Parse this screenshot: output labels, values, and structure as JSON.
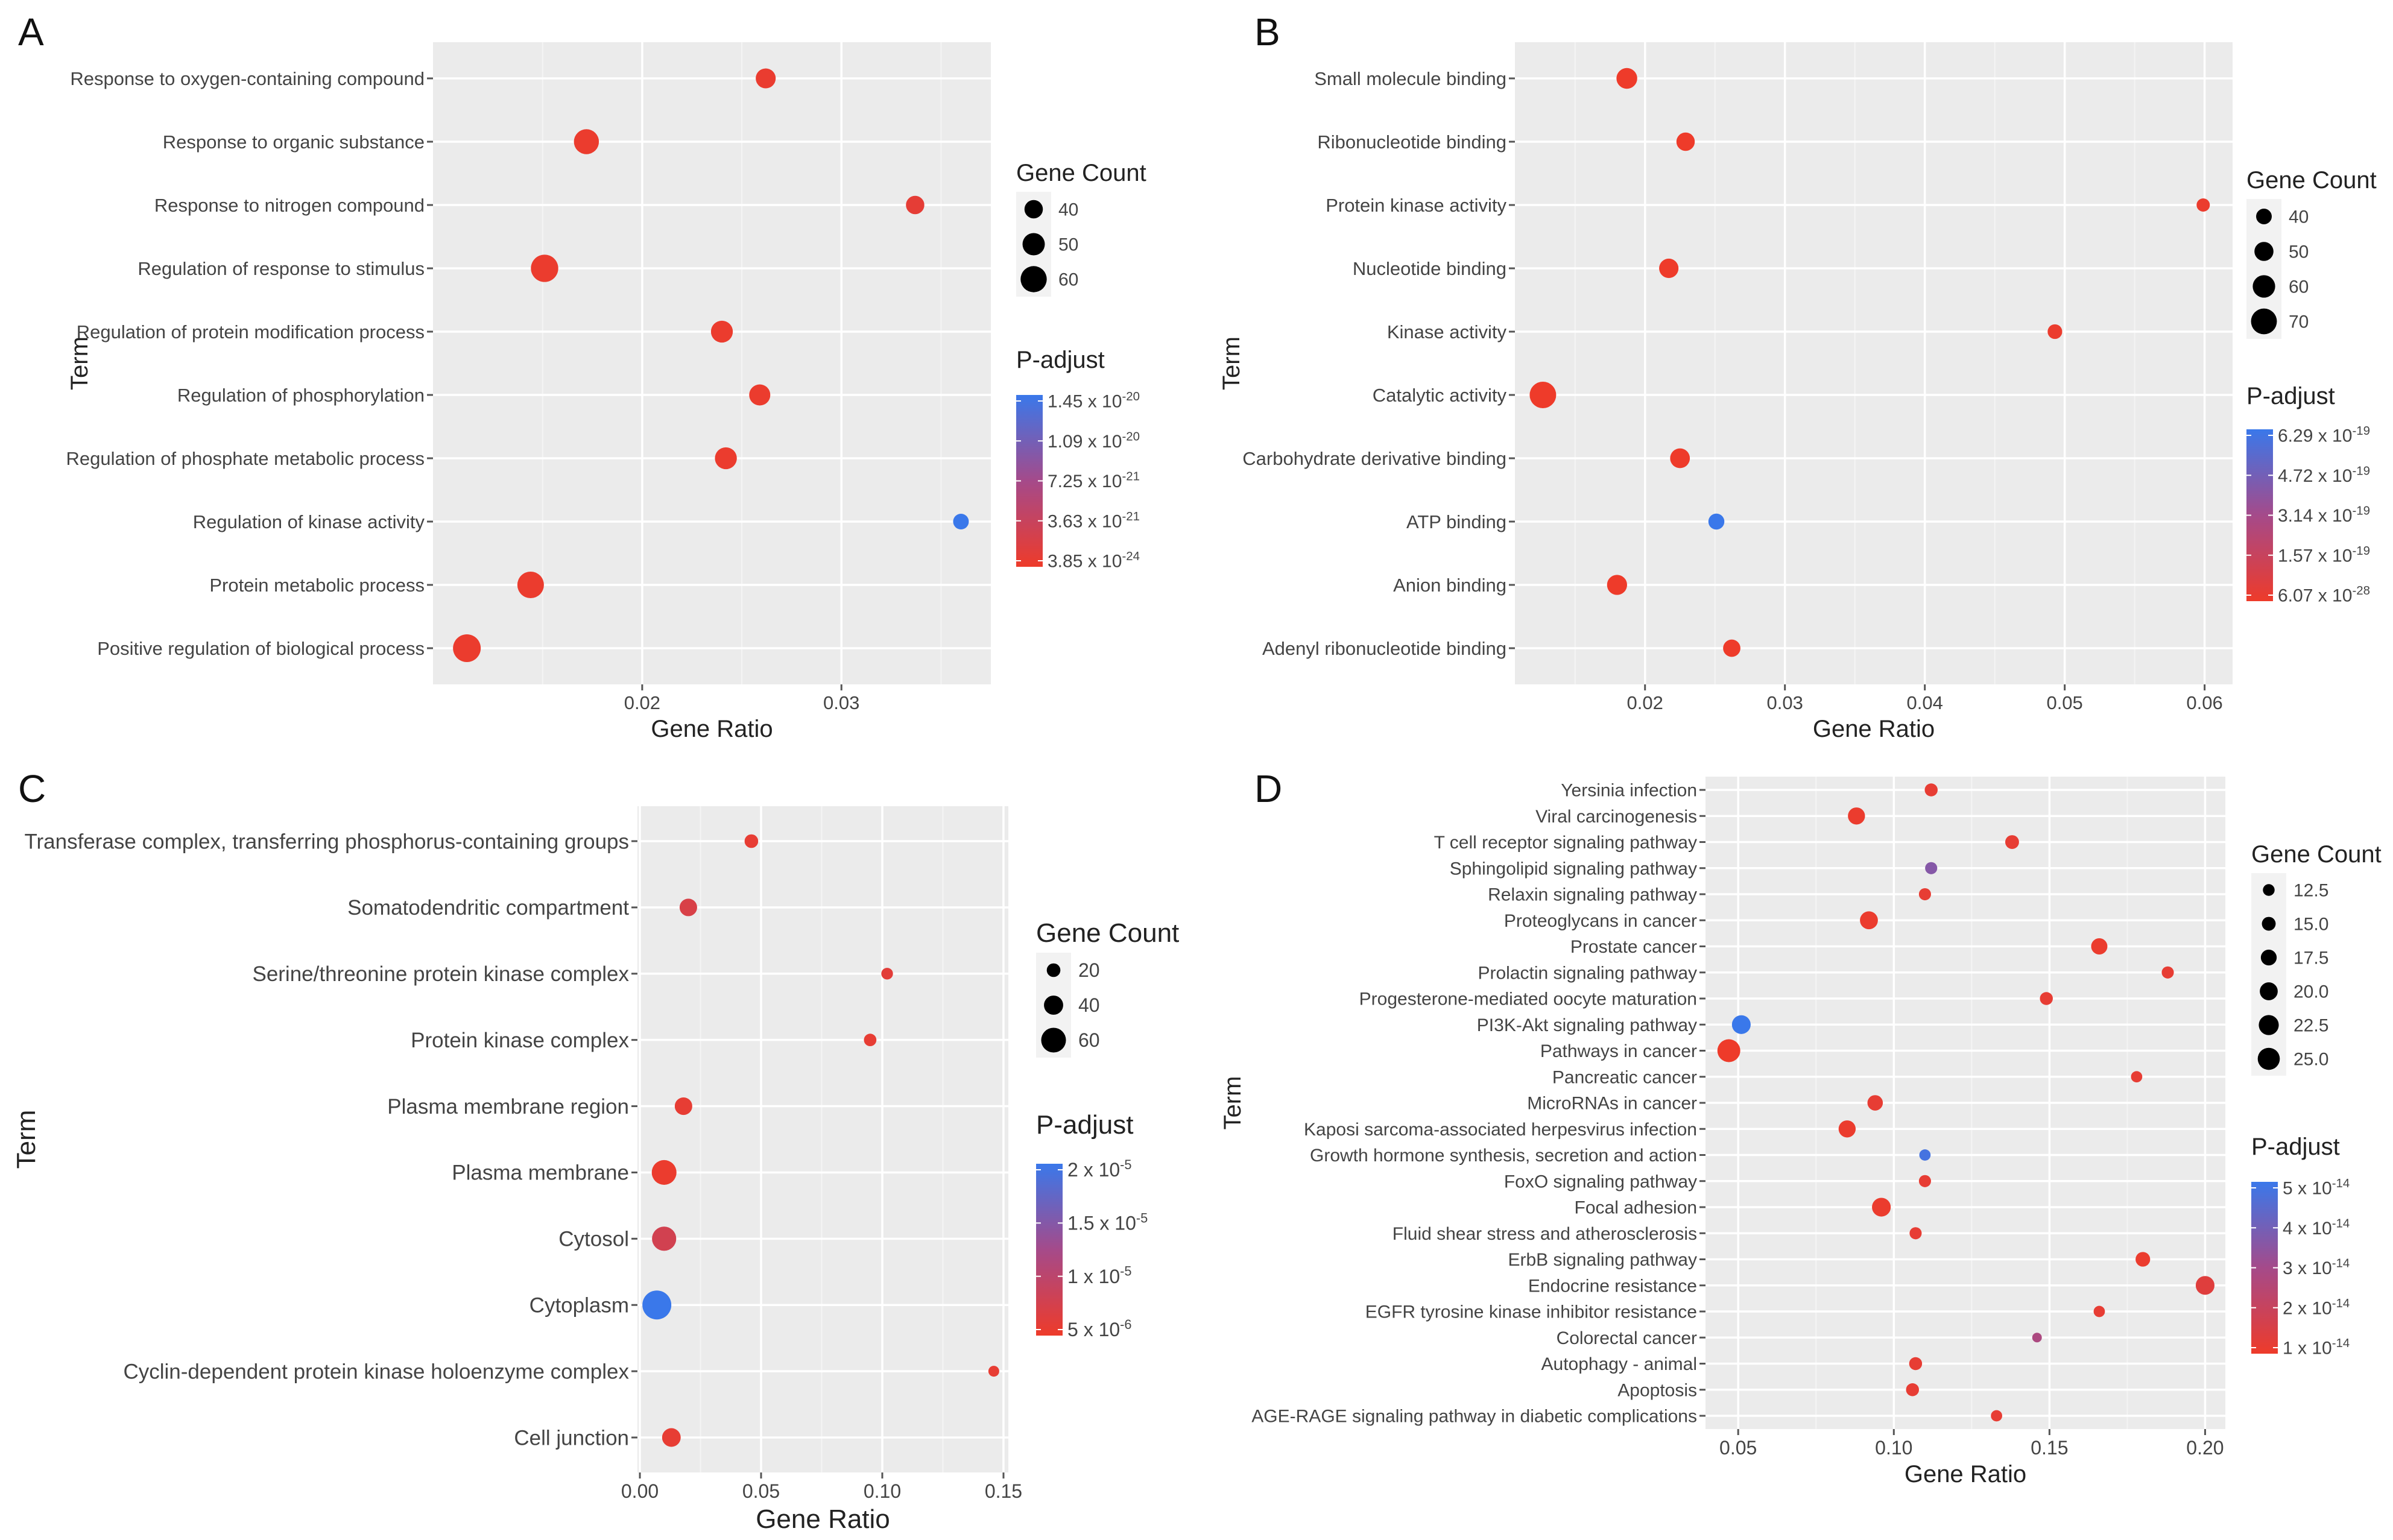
{
  "figure": {
    "description_panels": [
      "A",
      "B",
      "C",
      "D"
    ]
  },
  "chart_data": [
    {
      "panel": "A",
      "type": "scatter",
      "xlabel": "Gene Ratio",
      "ylabel": "Term",
      "xlim": [
        0.0095,
        0.0375
      ],
      "xticks": [
        0.02,
        0.03
      ],
      "xtick_labels": [
        "0.02",
        "0.03"
      ],
      "terms": [
        "Response to oxygen-containing compound",
        "Response to organic substance",
        "Response to nitrogen compound",
        "Regulation of response to stimulus",
        "Regulation of protein modification process",
        "Regulation of phosphorylation",
        "Regulation of phosphate metabolic process",
        "Regulation of kinase activity",
        "Protein metabolic process",
        "Positive regulation of biological process"
      ],
      "points": [
        {
          "term": "Response to oxygen-containing compound",
          "gene_ratio": 0.0262,
          "count": 44,
          "color_t": 0.03
        },
        {
          "term": "Response to organic substance",
          "gene_ratio": 0.0172,
          "count": 57,
          "color_t": 0.02
        },
        {
          "term": "Response to nitrogen compound",
          "gene_ratio": 0.0337,
          "count": 40,
          "color_t": 0.06
        },
        {
          "term": "Regulation of response to stimulus",
          "gene_ratio": 0.0151,
          "count": 63,
          "color_t": 0.02
        },
        {
          "term": "Regulation of protein modification process",
          "gene_ratio": 0.024,
          "count": 49,
          "color_t": 0.02
        },
        {
          "term": "Regulation of phosphorylation",
          "gene_ratio": 0.0259,
          "count": 47,
          "color_t": 0.02
        },
        {
          "term": "Regulation of phosphate metabolic process",
          "gene_ratio": 0.0242,
          "count": 49,
          "color_t": 0.02
        },
        {
          "term": "Regulation of kinase activity",
          "gene_ratio": 0.036,
          "count": 33,
          "color_t": 1.0
        },
        {
          "term": "Protein metabolic process",
          "gene_ratio": 0.0144,
          "count": 61,
          "color_t": 0.02
        },
        {
          "term": "Positive regulation of biological process",
          "gene_ratio": 0.0112,
          "count": 64,
          "color_t": 0.02
        }
      ],
      "size_legend": {
        "title": "Gene Count",
        "values": [
          40,
          50,
          60
        ],
        "labels": [
          "40",
          "50",
          "60"
        ]
      },
      "color_legend": {
        "title": "P-adjust",
        "labels": [
          "1.45 x 10-20",
          "1.09 x 10-20",
          "7.25 x 10-21",
          "3.63 x 10-21",
          "3.85 x 10-24"
        ]
      }
    },
    {
      "panel": "B",
      "type": "scatter",
      "xlabel": "Gene Ratio",
      "ylabel": "Term",
      "xlim": [
        0.0107,
        0.062
      ],
      "xticks": [
        0.02,
        0.03,
        0.04,
        0.05,
        0.06
      ],
      "xtick_labels": [
        "0.02",
        "0.03",
        "0.04",
        "0.05",
        "0.06"
      ],
      "terms": [
        "Small molecule binding",
        "Ribonucleotide binding",
        "Protein kinase activity",
        "Nucleotide binding",
        "Kinase activity",
        "Catalytic activity",
        "Carbohydrate derivative binding",
        "ATP binding",
        "Anion binding",
        "Adenyl ribonucleotide binding"
      ],
      "points": [
        {
          "term": "Small molecule binding",
          "gene_ratio": 0.0187,
          "count": 55,
          "color_t": 0.0
        },
        {
          "term": "Ribonucleotide binding",
          "gene_ratio": 0.0229,
          "count": 48,
          "color_t": 0.0
        },
        {
          "term": "Protein kinase activity",
          "gene_ratio": 0.0599,
          "count": 33,
          "color_t": 0.02
        },
        {
          "term": "Nucleotide binding",
          "gene_ratio": 0.0217,
          "count": 51,
          "color_t": 0.0
        },
        {
          "term": "Kinase activity",
          "gene_ratio": 0.0493,
          "count": 37,
          "color_t": 0.02
        },
        {
          "term": "Catalytic activity",
          "gene_ratio": 0.0127,
          "count": 72,
          "color_t": 0.0
        },
        {
          "term": "Carbohydrate derivative binding",
          "gene_ratio": 0.0225,
          "count": 52,
          "color_t": 0.0
        },
        {
          "term": "ATP binding",
          "gene_ratio": 0.0251,
          "count": 41,
          "color_t": 1.0
        },
        {
          "term": "Anion binding",
          "gene_ratio": 0.018,
          "count": 53,
          "color_t": 0.0
        },
        {
          "term": "Adenyl ribonucleotide binding",
          "gene_ratio": 0.0262,
          "count": 45,
          "color_t": 0.0
        }
      ],
      "size_legend": {
        "title": "Gene Count",
        "values": [
          40,
          50,
          60,
          70
        ],
        "labels": [
          "40",
          "50",
          "60",
          "70"
        ]
      },
      "color_legend": {
        "title": "P-adjust",
        "labels": [
          "6.29 x 10-19",
          "4.72 x 10-19",
          "3.14 x 10-19",
          "1.57 x 10-19",
          "6.07 x 10-28"
        ]
      }
    },
    {
      "panel": "C",
      "type": "scatter",
      "xlabel": "Gene Ratio",
      "ylabel": "Term",
      "xlim": [
        -0.001,
        0.152
      ],
      "xticks": [
        0.0,
        0.05,
        0.1,
        0.15
      ],
      "xtick_labels": [
        "0.00",
        "0.05",
        "0.10",
        "0.15"
      ],
      "terms": [
        "Transferase complex, transferring phosphorus-containing groups",
        "Somatodendritic compartment",
        "Serine/threonine protein kinase complex",
        "Protein kinase complex",
        "Plasma membrane region",
        "Plasma membrane",
        "Cytosol",
        "Cytoplasm",
        "Cyclin-dependent protein kinase holoenzyme complex",
        "Cell junction"
      ],
      "points": [
        {
          "term": "Transferase complex, transferring phosphorus-containing groups",
          "gene_ratio": 0.046,
          "count": 20,
          "color_t": 0.05
        },
        {
          "term": "Somatodendritic compartment",
          "gene_ratio": 0.02,
          "count": 34,
          "color_t": 0.15
        },
        {
          "term": "Serine/threonine protein kinase complex",
          "gene_ratio": 0.102,
          "count": 13,
          "color_t": 0.08
        },
        {
          "term": "Protein kinase complex",
          "gene_ratio": 0.095,
          "count": 16,
          "color_t": 0.05
        },
        {
          "term": "Plasma membrane region",
          "gene_ratio": 0.018,
          "count": 34,
          "color_t": 0.05
        },
        {
          "term": "Plasma membrane",
          "gene_ratio": 0.01,
          "count": 60,
          "color_t": 0.02
        },
        {
          "term": "Cytosol",
          "gene_ratio": 0.01,
          "count": 58,
          "color_t": 0.2
        },
        {
          "term": "Cytoplasm",
          "gene_ratio": 0.007,
          "count": 75,
          "color_t": 1.0
        },
        {
          "term": "Cyclin-dependent protein kinase holoenzyme complex",
          "gene_ratio": 0.146,
          "count": 10,
          "color_t": 0.05
        },
        {
          "term": "Cell junction",
          "gene_ratio": 0.013,
          "count": 38,
          "color_t": 0.05
        }
      ],
      "size_legend": {
        "title": "Gene Count",
        "values": [
          20,
          40,
          60
        ],
        "labels": [
          "20",
          "40",
          "60"
        ]
      },
      "color_legend": {
        "title": "P-adjust",
        "labels": [
          "2 x 10-5",
          "1.5 x 10-5",
          "1 x 10-5",
          "5 x 10-6"
        ]
      }
    },
    {
      "panel": "D",
      "type": "scatter",
      "xlabel": "Gene Ratio",
      "ylabel": "Term",
      "xlim": [
        0.0395,
        0.2065
      ],
      "xticks": [
        0.05,
        0.1,
        0.15,
        0.2
      ],
      "xtick_labels": [
        "0.05",
        "0.10",
        "0.15",
        "0.20"
      ],
      "terms": [
        "Yersinia infection",
        "Viral carcinogenesis",
        "T cell receptor signaling pathway",
        "Sphingolipid signaling pathway",
        "Relaxin signaling pathway",
        "Proteoglycans in cancer",
        "Prostate cancer",
        "Prolactin signaling pathway",
        "Progesterone-mediated oocyte maturation",
        "PI3K-Akt signaling pathway",
        "Pathways in cancer",
        "Pancreatic cancer",
        "MicroRNAs in cancer",
        "Kaposi sarcoma-associated herpesvirus infection",
        "Growth hormone synthesis, secretion and action",
        "FoxO signaling pathway",
        "Focal adhesion",
        "Fluid shear stress and atherosclerosis",
        "ErbB signaling pathway",
        "Endocrine resistance",
        "EGFR tyrosine kinase inhibitor resistance",
        "Colorectal cancer",
        "Autophagy - animal",
        "Apoptosis",
        "AGE-RAGE signaling pathway in diabetic complications"
      ],
      "points": [
        {
          "term": "Yersinia infection",
          "gene_ratio": 0.112,
          "count": 14,
          "color_t": 0.05
        },
        {
          "term": "Viral carcinogenesis",
          "gene_ratio": 0.088,
          "count": 19,
          "color_t": 0.02
        },
        {
          "term": "T cell receptor signaling pathway",
          "gene_ratio": 0.138,
          "count": 15,
          "color_t": 0.05
        },
        {
          "term": "Sphingolipid signaling pathway",
          "gene_ratio": 0.112,
          "count": 13,
          "color_t": 0.65
        },
        {
          "term": "Relaxin signaling pathway",
          "gene_ratio": 0.11,
          "count": 13,
          "color_t": 0.05
        },
        {
          "term": "Proteoglycans in cancer",
          "gene_ratio": 0.092,
          "count": 20,
          "color_t": 0.02
        },
        {
          "term": "Prostate cancer",
          "gene_ratio": 0.166,
          "count": 18,
          "color_t": 0.02
        },
        {
          "term": "Prolactin signaling pathway",
          "gene_ratio": 0.188,
          "count": 13,
          "color_t": 0.05
        },
        {
          "term": "Progesterone-mediated oocyte maturation",
          "gene_ratio": 0.149,
          "count": 14,
          "color_t": 0.05
        },
        {
          "term": "PI3K-Akt signaling pathway",
          "gene_ratio": 0.051,
          "count": 21,
          "color_t": 1.0
        },
        {
          "term": "Pathways in cancer",
          "gene_ratio": 0.047,
          "count": 26,
          "color_t": 0.0
        },
        {
          "term": "Pancreatic cancer",
          "gene_ratio": 0.178,
          "count": 12,
          "color_t": 0.05
        },
        {
          "term": "MicroRNAs in cancer",
          "gene_ratio": 0.094,
          "count": 17,
          "color_t": 0.05
        },
        {
          "term": "Kaposi sarcoma-associated herpesvirus infection",
          "gene_ratio": 0.085,
          "count": 19,
          "color_t": 0.02
        },
        {
          "term": "Growth hormone synthesis, secretion and action",
          "gene_ratio": 0.11,
          "count": 12,
          "color_t": 0.95
        },
        {
          "term": "FoxO signaling pathway",
          "gene_ratio": 0.11,
          "count": 13,
          "color_t": 0.05
        },
        {
          "term": "Focal adhesion",
          "gene_ratio": 0.096,
          "count": 21,
          "color_t": 0.02
        },
        {
          "term": "Fluid shear stress and atherosclerosis",
          "gene_ratio": 0.107,
          "count": 13,
          "color_t": 0.05
        },
        {
          "term": "ErbB signaling pathway",
          "gene_ratio": 0.18,
          "count": 16,
          "color_t": 0.02
        },
        {
          "term": "Endocrine resistance",
          "gene_ratio": 0.2,
          "count": 21,
          "color_t": 0.1
        },
        {
          "term": "EGFR tyrosine kinase inhibitor resistance",
          "gene_ratio": 0.166,
          "count": 12,
          "color_t": 0.05
        },
        {
          "term": "Colorectal cancer",
          "gene_ratio": 0.146,
          "count": 10,
          "color_t": 0.45
        },
        {
          "term": "Autophagy - animal",
          "gene_ratio": 0.107,
          "count": 14,
          "color_t": 0.05
        },
        {
          "term": "Apoptosis",
          "gene_ratio": 0.106,
          "count": 14,
          "color_t": 0.05
        },
        {
          "term": "AGE-RAGE signaling pathway in diabetic complications",
          "gene_ratio": 0.133,
          "count": 12,
          "color_t": 0.05
        }
      ],
      "size_legend": {
        "title": "Gene Count",
        "values": [
          12.5,
          15.0,
          17.5,
          20.0,
          22.5,
          25.0
        ],
        "labels": [
          "12.5",
          "15.0",
          "17.5",
          "20.0",
          "22.5",
          "25.0"
        ]
      },
      "color_legend": {
        "title": "P-adjust",
        "labels": [
          "5 x 10-14",
          "4 x 10-14",
          "3 x 10-14",
          "2 x 10-14",
          "1 x 10-14"
        ]
      }
    }
  ],
  "colors": {
    "panel_bg": "#ebebeb",
    "grid_major": "#ffffff",
    "grid_minor": "#f4f4f4",
    "low_padj": "#ee3b2a",
    "high_padj": "#3a78ea",
    "text": "#444444",
    "axis_title": "#222222"
  }
}
